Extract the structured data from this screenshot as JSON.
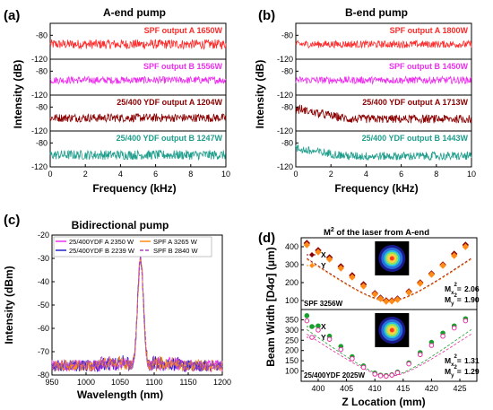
{
  "figure": {
    "panel_a": {
      "letter": "(a)",
      "title": "A-end pump"
    },
    "panel_b": {
      "letter": "(b)",
      "title": "B-end pump"
    },
    "panel_c": {
      "letter": "(c)",
      "title": "Bidirectional pump"
    },
    "panel_d": {
      "letter": "(d)",
      "title_prefix": "M",
      "title_sup": "2",
      "title_rest": " of the laser from A-end"
    }
  },
  "chart_data": [
    {
      "id": "a",
      "type": "line",
      "title": "A-end pump",
      "xlabel": "Frequency (kHz)",
      "ylabel": "Intensity (dB)",
      "xlim": [
        0,
        10
      ],
      "ylim": [
        -120,
        -60
      ],
      "x_ticks": [
        "0",
        "2",
        "4",
        "6",
        "8",
        "10"
      ],
      "y_ticks": [
        "-80",
        "-120"
      ],
      "series": [
        {
          "name": "SPF output A 1650W",
          "color": "#ff2a2a",
          "baseline_db": -95,
          "noise_db": 8,
          "hump_db": 0
        },
        {
          "name": "SPF output B 1556W",
          "color": "#ee30ee",
          "baseline_db": -95,
          "noise_db": 6,
          "hump_db": 0
        },
        {
          "name": "25/400 YDF output A 1204W",
          "color": "#8b0000",
          "baseline_db": -98,
          "noise_db": 7,
          "hump_db": 0
        },
        {
          "name": "25/400 YDF output B 1247W",
          "color": "#1f9e8c",
          "baseline_db": -100,
          "noise_db": 8,
          "hump_db": 0
        }
      ]
    },
    {
      "id": "b",
      "type": "line",
      "title": "B-end pump",
      "xlabel": "Frequency (kHz)",
      "ylabel": "Intensity (dB)",
      "xlim": [
        0,
        10
      ],
      "ylim": [
        -120,
        -60
      ],
      "x_ticks": [
        "0",
        "2",
        "4",
        "6",
        "8",
        "10"
      ],
      "y_ticks": [
        "-80",
        "-120"
      ],
      "series": [
        {
          "name": "SPF output A 1800W",
          "color": "#ff2a2a",
          "baseline_db": -95,
          "noise_db": 6,
          "hump_db": 0
        },
        {
          "name": "SPF output B 1450W",
          "color": "#ee30ee",
          "baseline_db": -95,
          "noise_db": 6,
          "hump_db": 0
        },
        {
          "name": "25/400 YDF output A 1713W",
          "color": "#8b0000",
          "baseline_db": -100,
          "noise_db": 7,
          "hump_db": 20
        },
        {
          "name": "25/400 YDF output B 1443W",
          "color": "#1f9e8c",
          "baseline_db": -102,
          "noise_db": 7,
          "hump_db": 14
        }
      ]
    },
    {
      "id": "c",
      "type": "line",
      "title": "Bidirectional pump",
      "xlabel": "Wavelength (nm)",
      "ylabel": "Intensity (dBm)",
      "xlim": [
        950,
        1200
      ],
      "ylim": [
        -80,
        -20
      ],
      "x_ticks": [
        "950",
        "1000",
        "1050",
        "1100",
        "1150",
        "1200"
      ],
      "y_ticks": [
        "-20",
        "-30",
        "-40",
        "-50",
        "-60",
        "-70",
        "-80"
      ],
      "peak_nm": 1080,
      "series": [
        {
          "name": "25/400YDF A 2350 W",
          "color": "#ee30ee",
          "peak_dbm": -33,
          "dash": ""
        },
        {
          "name": "25/400YDF B 2239 W",
          "color": "#2222cc",
          "peak_dbm": -34,
          "dash": ""
        },
        {
          "name": "SPF A 3265 W",
          "color": "#ff8c1a",
          "peak_dbm": -35,
          "dash": ""
        },
        {
          "name": "SPF B 2840 W",
          "color": "#aa44bb",
          "peak_dbm": -34,
          "dash": "4,2"
        }
      ]
    },
    {
      "id": "d_top",
      "type": "scatter",
      "title": "M2 of the laser from A-end",
      "ylabel": "Beam Width [D4σ] (μm)",
      "xlim": [
        397,
        428
      ],
      "ylim": [
        50,
        450
      ],
      "y_ticks": [
        "100",
        "200",
        "300",
        "400"
      ],
      "label": "SPF 3256W",
      "m2_x": "2.06",
      "m2_y": "1.90",
      "series": [
        {
          "name": "X",
          "color": "#8b0000",
          "marker": "diamond",
          "x": [
            398,
            400,
            402,
            404,
            406,
            408,
            410,
            411,
            412,
            413,
            414,
            416,
            418,
            420,
            422,
            424,
            426
          ],
          "y": [
            420,
            380,
            340,
            290,
            240,
            190,
            140,
            115,
            100,
            100,
            110,
            150,
            200,
            250,
            300,
            360,
            410
          ]
        },
        {
          "name": "Y",
          "color": "#ff8c1a",
          "marker": "diamond",
          "x": [
            398,
            400,
            402,
            404,
            406,
            408,
            410,
            411,
            412,
            413,
            414,
            416,
            418,
            420,
            422,
            424,
            426
          ],
          "y": [
            410,
            370,
            330,
            280,
            230,
            180,
            135,
            110,
            95,
            96,
            105,
            145,
            195,
            245,
            295,
            350,
            400
          ]
        }
      ]
    },
    {
      "id": "d_bottom",
      "type": "scatter",
      "xlabel": "Z Location (mm)",
      "xlim": [
        397,
        428
      ],
      "ylim": [
        50,
        400
      ],
      "x_ticks": [
        "400",
        "405",
        "410",
        "415",
        "420",
        "425"
      ],
      "y_ticks": [
        "100",
        "150",
        "200",
        "250",
        "300",
        "350"
      ],
      "label": "25/400YDF 2025W",
      "m2_x": "1.31",
      "m2_y": "1.29",
      "series": [
        {
          "name": "X",
          "color": "#1a9e2e",
          "marker": "circle",
          "x": [
            398,
            400,
            402,
            404,
            406,
            408,
            410,
            411,
            412,
            413,
            414,
            416,
            418,
            420,
            422,
            424,
            426
          ],
          "y": [
            370,
            320,
            270,
            220,
            170,
            125,
            90,
            80,
            78,
            82,
            95,
            140,
            190,
            240,
            285,
            320,
            355
          ]
        },
        {
          "name": "Y",
          "color": "#e0309e",
          "marker": "circle",
          "x": [
            398,
            400,
            402,
            404,
            406,
            408,
            410,
            411,
            412,
            413,
            414,
            416,
            418,
            420,
            422,
            424,
            426
          ],
          "y": [
            345,
            300,
            255,
            205,
            160,
            118,
            85,
            77,
            75,
            80,
            92,
            135,
            180,
            225,
            270,
            310,
            345
          ]
        }
      ]
    }
  ]
}
